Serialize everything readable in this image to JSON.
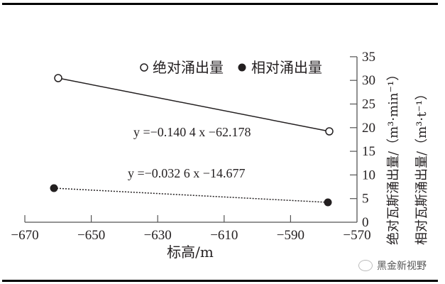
{
  "chart_data": {
    "type": "line",
    "title": "",
    "xlabel": "标高/m",
    "ylabel": [
      "绝对瓦斯涌出量/（m³·min⁻¹）",
      "相对瓦斯涌出量/（m³·t⁻¹）"
    ],
    "xlim": [
      -670,
      -570
    ],
    "ylim": [
      0,
      35
    ],
    "x_ticks": [
      -670,
      -650,
      -630,
      -610,
      -590,
      -570
    ],
    "y_ticks": [
      0,
      5,
      10,
      15,
      20,
      25,
      30,
      35
    ],
    "y_axis_position": "right",
    "grid": false,
    "legend": {
      "position": "top",
      "entries": [
        "绝对涌出量",
        "相对涌出量"
      ]
    },
    "series": [
      {
        "name": "绝对涌出量",
        "marker": "open-circle",
        "line": "solid",
        "x": [
          -660,
          -578
        ],
        "y": [
          30.4,
          19.1
        ],
        "fit_equation": "y =−0.140 4 x −62.178"
      },
      {
        "name": "相对涌出量",
        "marker": "filled-circle",
        "line": "dotted",
        "x": [
          -661,
          -578
        ],
        "y": [
          7.4,
          4.2
        ],
        "fit_equation": "y =−0.032 6 x −14.677"
      }
    ]
  },
  "labels": {
    "x_ticks": [
      "−670",
      "−650",
      "−630",
      "−610",
      "−590",
      "−570"
    ],
    "y_ticks": [
      "0",
      "5",
      "10",
      "15",
      "20",
      "25",
      "30",
      "35"
    ],
    "xlabel": "标高/m",
    "ylabel_abs": "绝对瓦斯涌出量/（m³·min⁻¹）",
    "ylabel_rel": "相对瓦斯涌出量/（m³·t⁻¹）",
    "legend_abs": "绝对涌出量",
    "legend_rel": "相对涌出量",
    "eq_abs": "y =−0.140 4 x −62.178",
    "eq_rel": "y =−0.032 6 x −14.677"
  },
  "watermark": "黑金新视野"
}
